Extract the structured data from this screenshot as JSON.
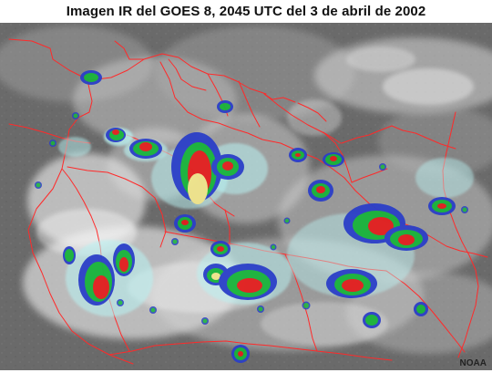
{
  "figure": {
    "title": "Imagen IR del GOES 8, 2045 UTC del 3 de abril de 2002",
    "credit": "NOAA"
  },
  "palette": {
    "background_gray": "#666666",
    "cloud_white": "#eeeeee",
    "cloud_light": "#cfcfcf",
    "cyan_tops": "#b8f2f2",
    "blue_tops": "#2b3fc8",
    "green_tops": "#18b33a",
    "red_tops": "#e31d1d",
    "yellow_tops": "#f0e38a",
    "border_red": "#ff2a2a"
  }
}
